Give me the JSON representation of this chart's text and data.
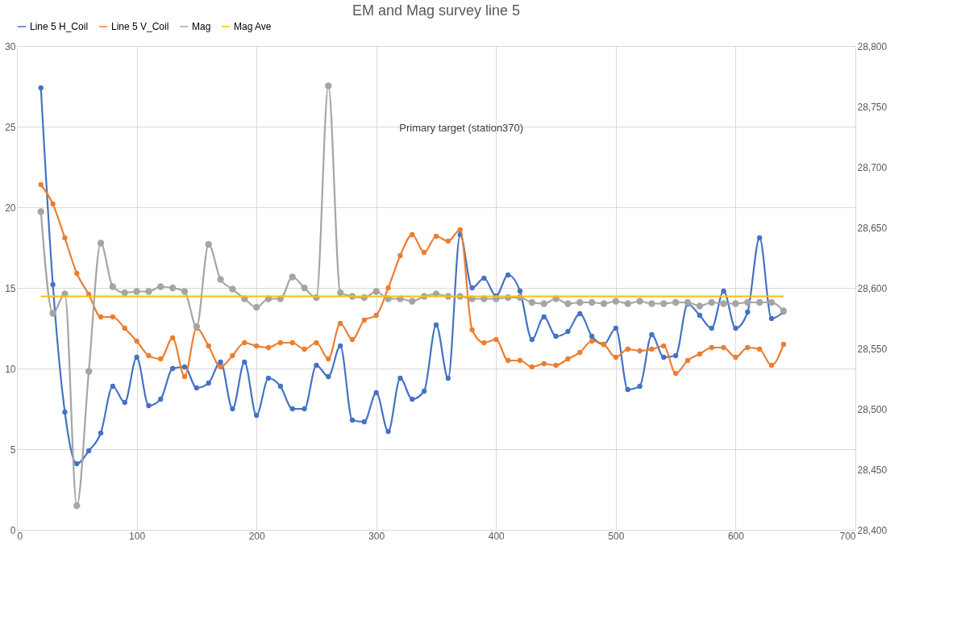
{
  "chart_data": {
    "type": "line",
    "title": "EM and Mag survey line 5",
    "x": [
      20,
      30,
      40,
      50,
      60,
      70,
      80,
      90,
      100,
      110,
      120,
      130,
      140,
      150,
      160,
      170,
      180,
      190,
      200,
      210,
      220,
      230,
      240,
      250,
      260,
      270,
      280,
      290,
      300,
      310,
      320,
      330,
      340,
      350,
      360,
      370,
      380,
      390,
      400,
      410,
      420,
      430,
      440,
      450,
      460,
      470,
      480,
      490,
      500,
      510,
      520,
      530,
      540,
      550,
      560,
      570,
      580,
      590,
      600,
      610,
      620,
      630,
      640
    ],
    "series": [
      {
        "name": "Line 5 H_Coil",
        "color": "#4472c4",
        "marker": "circle",
        "values": [
          27.4,
          15.2,
          7.3,
          4.1,
          4.9,
          6.0,
          8.9,
          7.9,
          10.7,
          7.7,
          8.1,
          10.0,
          10.1,
          8.8,
          9.1,
          10.4,
          7.5,
          10.4,
          7.1,
          9.4,
          8.9,
          7.5,
          7.5,
          10.2,
          9.5,
          11.4,
          6.8,
          6.7,
          8.5,
          6.1,
          9.4,
          8.1,
          8.6,
          12.7,
          9.4,
          18.3,
          15.0,
          15.6,
          14.5,
          15.8,
          14.8,
          11.8,
          13.2,
          12.0,
          12.3,
          13.4,
          12.0,
          11.5,
          12.5,
          8.7,
          8.9,
          12.1,
          10.7,
          10.8,
          14.0,
          13.3,
          12.5,
          14.8,
          12.5,
          13.5,
          18.1,
          13.1,
          13.5
        ]
      },
      {
        "name": "Line 5 V_Coil",
        "color": "#ed7d31",
        "marker": "circle",
        "values": [
          21.4,
          20.2,
          18.1,
          15.9,
          14.6,
          13.2,
          13.2,
          12.5,
          11.7,
          10.8,
          10.6,
          11.9,
          9.5,
          12.5,
          11.4,
          10.1,
          10.8,
          11.6,
          11.4,
          11.3,
          11.6,
          11.6,
          11.2,
          11.6,
          10.6,
          12.8,
          11.8,
          13.0,
          13.3,
          15.0,
          17.0,
          18.3,
          17.2,
          18.2,
          17.9,
          18.6,
          12.4,
          11.6,
          11.8,
          10.5,
          10.5,
          10.1,
          10.3,
          10.2,
          10.6,
          11.0,
          11.7,
          11.5,
          10.7,
          11.2,
          11.1,
          11.2,
          11.4,
          9.7,
          10.5,
          10.9,
          11.3,
          11.3,
          10.7,
          11.3,
          11.2,
          10.2,
          11.5
        ]
      },
      {
        "name": "Mag",
        "color": "#a5a5a5",
        "marker": "circle",
        "axis": "y2",
        "values": [
          28663,
          28579,
          28595,
          28420,
          28531,
          28637,
          28601,
          28596,
          28597,
          28597,
          28601,
          28600,
          28597,
          28568,
          28636,
          28607,
          28599,
          28591,
          28584,
          28591,
          28591,
          28609,
          28600,
          28592,
          28767,
          28596,
          28593,
          28592,
          28597,
          28591,
          28591,
          28589,
          28593,
          28595,
          28593,
          28593,
          28591,
          28591,
          28591,
          28592,
          28592,
          28588,
          28587,
          28591,
          28587,
          28588,
          28588,
          28587,
          28589,
          28587,
          28589,
          28587,
          28587,
          28588,
          28588,
          28585,
          28588,
          28587,
          28587,
          28588,
          28588,
          28588,
          28581
        ]
      },
      {
        "name": "Mag Ave",
        "color": "#ffc000",
        "marker": "none",
        "axis": "y2",
        "values": [
          28593,
          28593,
          28593,
          28593,
          28593,
          28593,
          28593,
          28593,
          28593,
          28593,
          28593,
          28593,
          28593,
          28593,
          28593,
          28593,
          28593,
          28593,
          28593,
          28593,
          28593,
          28593,
          28593,
          28593,
          28593,
          28593,
          28593,
          28593,
          28593,
          28593,
          28593,
          28593,
          28593,
          28593,
          28593,
          28593,
          28593,
          28593,
          28593,
          28593,
          28593,
          28593,
          28593,
          28593,
          28593,
          28593,
          28593,
          28593,
          28593,
          28593,
          28593,
          28593,
          28593,
          28593,
          28593,
          28593,
          28593,
          28593,
          28593,
          28593,
          28593,
          28593,
          28593
        ]
      }
    ],
    "xlim": [
      0,
      700
    ],
    "xticks": [
      0,
      100,
      200,
      300,
      400,
      500,
      600,
      700
    ],
    "ylim": [
      0,
      30
    ],
    "yticks": [
      0,
      5,
      10,
      15,
      20,
      25,
      30
    ],
    "y2lim": [
      28400,
      28800
    ],
    "y2ticks": [
      {
        "value": 28400,
        "label": "28,400"
      },
      {
        "value": 28450,
        "label": "28,450"
      },
      {
        "value": 28500,
        "label": "28,500"
      },
      {
        "value": 28550,
        "label": "28,550"
      },
      {
        "value": 28600,
        "label": "28,600"
      },
      {
        "value": 28650,
        "label": "28,650"
      },
      {
        "value": 28700,
        "label": "28,700"
      },
      {
        "value": 28750,
        "label": "28,750"
      },
      {
        "value": 28800,
        "label": "28,800"
      }
    ],
    "annotations": [
      "Primary target (station370)"
    ],
    "grid": true,
    "legend": "top",
    "line_style": "solid"
  }
}
